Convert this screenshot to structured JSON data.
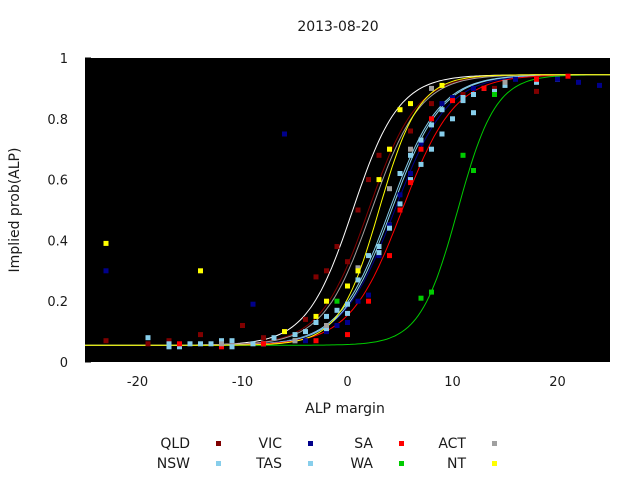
{
  "chart_data": {
    "type": "scatter",
    "title": "2013-08-20",
    "xlabel": "ALP margin",
    "ylabel": "Implied prob(ALP)",
    "xlim": [
      -25,
      25
    ],
    "ylim": [
      0,
      1
    ],
    "xticks": [
      "-20",
      "-10",
      "0",
      "10",
      "20"
    ],
    "xtick_values": [
      -20,
      -10,
      0,
      10,
      20
    ],
    "yticks": [
      "0",
      "0.2",
      "0.4",
      "0.6",
      "0.8",
      "1"
    ],
    "ytick_values": [
      0,
      0.2,
      0.4,
      0.6,
      0.8,
      1
    ],
    "background": "#000000",
    "grid": false,
    "legend_position": "bottom",
    "curve": {
      "floor": 0.055,
      "ceiling": 0.945
    },
    "series": [
      {
        "name": "QLD",
        "color": "#800000",
        "center": 2.0,
        "scale": 2.3,
        "points": [
          [
            -23,
            0.07
          ],
          [
            -19,
            0.06
          ],
          [
            -17,
            0.07
          ],
          [
            -14,
            0.09
          ],
          [
            -10,
            0.12
          ],
          [
            -8,
            0.08
          ],
          [
            -6,
            0.1
          ],
          [
            -4,
            0.14
          ],
          [
            -3,
            0.28
          ],
          [
            -2,
            0.3
          ],
          [
            -1,
            0.38
          ],
          [
            0,
            0.33
          ],
          [
            1,
            0.5
          ],
          [
            2,
            0.6
          ],
          [
            3,
            0.68
          ],
          [
            4,
            0.7
          ],
          [
            6,
            0.76
          ],
          [
            8,
            0.85
          ],
          [
            11,
            0.88
          ],
          [
            14,
            0.9
          ],
          [
            18,
            0.89
          ]
        ]
      },
      {
        "name": "NSW",
        "color": "#87ceeb",
        "center": 4.0,
        "scale": 2.4,
        "points": [
          [
            -19,
            0.08
          ],
          [
            -17,
            0.06
          ],
          [
            -16,
            0.05
          ],
          [
            -15,
            0.06
          ],
          [
            -13,
            0.06
          ],
          [
            -12,
            0.07
          ],
          [
            -11,
            0.07
          ],
          [
            -9,
            0.06
          ],
          [
            -7,
            0.08
          ],
          [
            -5,
            0.09
          ],
          [
            -4,
            0.1
          ],
          [
            -3,
            0.13
          ],
          [
            -2,
            0.15
          ],
          [
            -1,
            0.17
          ],
          [
            0,
            0.19
          ],
          [
            1,
            0.3
          ],
          [
            2,
            0.35
          ],
          [
            3,
            0.38
          ],
          [
            4,
            0.45
          ],
          [
            5,
            0.52
          ],
          [
            6,
            0.6
          ],
          [
            7,
            0.65
          ],
          [
            8,
            0.7
          ],
          [
            9,
            0.75
          ],
          [
            10,
            0.8
          ],
          [
            11,
            0.86
          ],
          [
            12,
            0.88
          ],
          [
            13,
            0.9
          ],
          [
            15,
            0.91
          ],
          [
            18,
            0.92
          ],
          [
            20,
            0.93
          ]
        ]
      },
      {
        "name": "VIC",
        "color": "#00008b",
        "center": 4.5,
        "scale": 2.5,
        "points": [
          [
            -23,
            0.3
          ],
          [
            -9,
            0.19
          ],
          [
            -6,
            0.75
          ],
          [
            -4,
            0.07
          ],
          [
            -2,
            0.1
          ],
          [
            -1,
            0.12
          ],
          [
            0,
            0.13
          ],
          [
            1,
            0.2
          ],
          [
            2,
            0.22
          ],
          [
            3,
            0.35
          ],
          [
            4,
            0.45
          ],
          [
            5,
            0.55
          ],
          [
            6,
            0.62
          ],
          [
            7,
            0.72
          ],
          [
            8,
            0.8
          ],
          [
            9,
            0.85
          ],
          [
            10,
            0.87
          ],
          [
            12,
            0.9
          ],
          [
            16,
            0.93
          ],
          [
            20,
            0.93
          ],
          [
            22,
            0.92
          ],
          [
            24,
            0.91
          ]
        ]
      },
      {
        "name": "TAS",
        "color": "#87ceeb",
        "center": 4.2,
        "scale": 2.4,
        "points": [
          [
            -17,
            0.05
          ],
          [
            -14,
            0.06
          ],
          [
            -11,
            0.05
          ],
          [
            -8,
            0.06
          ],
          [
            -5,
            0.07
          ],
          [
            -2,
            0.11
          ],
          [
            0,
            0.16
          ],
          [
            1,
            0.27
          ],
          [
            3,
            0.36
          ],
          [
            4,
            0.44
          ],
          [
            5,
            0.62
          ],
          [
            6,
            0.68
          ],
          [
            7,
            0.73
          ],
          [
            8,
            0.78
          ],
          [
            9,
            0.83
          ],
          [
            11,
            0.87
          ],
          [
            12,
            0.82
          ],
          [
            14,
            0.89
          ]
        ]
      },
      {
        "name": "SA",
        "color": "#ff0000",
        "center": 5.2,
        "scale": 2.5,
        "points": [
          [
            -16,
            0.06
          ],
          [
            -12,
            0.05
          ],
          [
            -8,
            0.06
          ],
          [
            -3,
            0.07
          ],
          [
            0,
            0.09
          ],
          [
            2,
            0.2
          ],
          [
            4,
            0.35
          ],
          [
            5,
            0.5
          ],
          [
            6,
            0.59
          ],
          [
            7,
            0.7
          ],
          [
            8,
            0.8
          ],
          [
            10,
            0.86
          ],
          [
            13,
            0.9
          ],
          [
            18,
            0.93
          ],
          [
            21,
            0.94
          ]
        ]
      },
      {
        "name": "WA",
        "color": "#00cc00",
        "center": 10.5,
        "scale": 1.8,
        "points": [
          [
            -1,
            0.2
          ],
          [
            7,
            0.21
          ],
          [
            8,
            0.23
          ],
          [
            11,
            0.68
          ],
          [
            12,
            0.63
          ],
          [
            14,
            0.88
          ]
        ]
      },
      {
        "name": "ACT",
        "color": "#a0a0a0",
        "center": 2.3,
        "scale": 2.3,
        "points": [
          [
            -12,
            0.06
          ],
          [
            -5,
            0.07
          ],
          [
            -2,
            0.12
          ],
          [
            1,
            0.31
          ],
          [
            4,
            0.57
          ],
          [
            6,
            0.7
          ],
          [
            8,
            0.9
          ],
          [
            15,
            0.92
          ]
        ]
      },
      {
        "name": "NT",
        "color": "#ffff00",
        "center": 3.0,
        "scale": 1.9,
        "points": [
          [
            -23,
            0.39
          ],
          [
            -14,
            0.3
          ],
          [
            -6,
            0.1
          ],
          [
            -3,
            0.15
          ],
          [
            -2,
            0.2
          ],
          [
            0,
            0.25
          ],
          [
            1,
            0.3
          ],
          [
            3,
            0.6
          ],
          [
            4,
            0.7
          ],
          [
            5,
            0.83
          ],
          [
            6,
            0.85
          ],
          [
            9,
            0.91
          ]
        ]
      }
    ],
    "extra_curve": {
      "color": "#ffffff",
      "center": 0.5,
      "scale": 2.2
    }
  },
  "legend": {
    "items": [
      {
        "label": "QLD",
        "color": "#800000"
      },
      {
        "label": "VIC",
        "color": "#00008b"
      },
      {
        "label": "SA",
        "color": "#ff0000"
      },
      {
        "label": "ACT",
        "color": "#a0a0a0"
      },
      {
        "label": "NSW",
        "color": "#87ceeb"
      },
      {
        "label": "TAS",
        "color": "#87ceeb"
      },
      {
        "label": "WA",
        "color": "#00cc00"
      },
      {
        "label": "NT",
        "color": "#ffff00"
      }
    ]
  }
}
